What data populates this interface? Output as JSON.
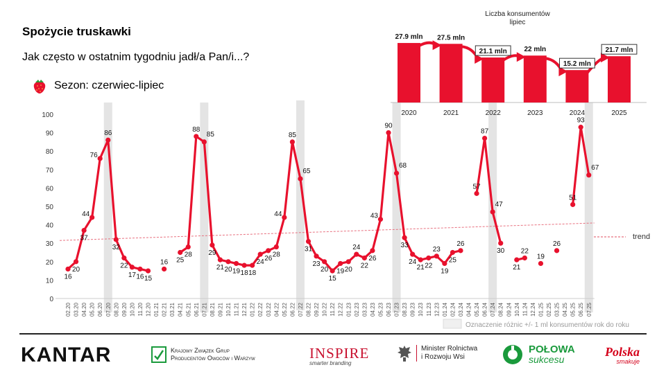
{
  "header": {
    "title": "Spożycie truskawki",
    "subtitle": "Jak często w ostatnim tygodniu jadł/a Pan/i...?",
    "season": "Sezon: czerwiec-lipiec"
  },
  "colors": {
    "series": "#e8112d",
    "band": "#e4e4e4",
    "trend": "#e8707f"
  },
  "chart_data": [
    {
      "type": "line",
      "y_ticks": [
        "0",
        "10",
        "20",
        "30",
        "40",
        "50",
        "60",
        "70",
        "80",
        "90",
        "100"
      ],
      "ylim": [
        0,
        100
      ],
      "x": [
        "02.20",
        "03.20",
        "04.20",
        "05.20",
        "06.20",
        "07.20",
        "08.20",
        "09.20",
        "10.20",
        "11.20",
        "12.20",
        "01.21",
        "02.21",
        "03.21",
        "04.21",
        "05.21",
        "06.21",
        "07.21",
        "08.21",
        "09.21",
        "10.21",
        "11.21",
        "12.21",
        "01.22",
        "02.22",
        "03.22",
        "04.22",
        "05.22",
        "06.22",
        "07.22",
        "08.22",
        "09.22",
        "10.22",
        "11.22",
        "12.22",
        "01.23",
        "02.23",
        "03.23",
        "04.23",
        "05.23",
        "06.23",
        "07.23",
        "08.23",
        "09.23",
        "10.23",
        "11.23",
        "12.23",
        "01.24",
        "02.24",
        "03.24",
        "04.24",
        "05.24",
        "06.24",
        "07.24",
        "08.24",
        "09.24",
        "10.24",
        "11.24",
        "12.24",
        "01.25",
        "02.25",
        "03.25",
        "04.25",
        "05.25",
        "06.25",
        "07.25"
      ],
      "series": [
        {
          "values": [
            16,
            20,
            37,
            44,
            76,
            86,
            32,
            22,
            17,
            16,
            15,
            null,
            16,
            null,
            25,
            28,
            88,
            85,
            29,
            21,
            20,
            19,
            18,
            18,
            24,
            26,
            28,
            44,
            85,
            65,
            31,
            23,
            20,
            15,
            19,
            20,
            24,
            22,
            26,
            43,
            90,
            68,
            33,
            24,
            21,
            22,
            23,
            19,
            25,
            26,
            null,
            57,
            87,
            47,
            30,
            null,
            21,
            22,
            null,
            19,
            null,
            26,
            null,
            51,
            93,
            67
          ]
        }
      ],
      "point_labels": [
        "16",
        "20",
        "37",
        "44",
        "76",
        "86",
        "32",
        "22",
        "17",
        "16",
        "15",
        null,
        "16",
        null,
        "25",
        "28",
        "88",
        "85",
        "29",
        "21",
        "20",
        "19",
        "18",
        "18",
        "24",
        "26",
        "28",
        "44",
        "85",
        "65",
        "31",
        "23",
        "20",
        "15",
        "19",
        "20",
        "24",
        "22",
        "26",
        "43",
        "90",
        "68",
        "33",
        "24",
        "21",
        "22",
        "23",
        "19",
        "25",
        "26",
        null,
        "57",
        "87",
        "47",
        "30",
        null,
        "21",
        "22",
        null,
        "19",
        null,
        "26",
        null,
        "51",
        "93",
        "67"
      ],
      "highlight_months": [
        "07.20",
        "07.21",
        "07.22",
        "07.23",
        "07.24",
        "07.25"
      ],
      "trend": {
        "start": 31.5,
        "end": 41
      },
      "legend": {
        "trend_label": "trend",
        "band_label": "Oznaczenie różnic +/- 1 ml konsumentów rok do roku"
      }
    },
    {
      "type": "bar",
      "title": "Liczba konsumentów lipiec",
      "title_lines": [
        "Liczba konsumentów",
        "lipiec"
      ],
      "categories": [
        "2020",
        "2021",
        "2022",
        "2023",
        "2024",
        "2025"
      ],
      "values": [
        27.9,
        27.5,
        21.1,
        22,
        15.2,
        21.7
      ],
      "value_labels": [
        "27.9 mln",
        "27.5 mln",
        "21.1 mln",
        "22 mln",
        "15.2 mln",
        "21.7 mln"
      ],
      "boxed_labels": [
        false,
        false,
        true,
        false,
        true,
        true
      ]
    }
  ],
  "footer": {
    "kantar": "KANTAR",
    "kzg": [
      "Krajowy Związek Grup",
      "Producentów Owoców i Warzyw"
    ],
    "inspire": "INSPIRE",
    "inspire_sub": "smarter branding",
    "minister": [
      "Minister Rolnictwa",
      "i Rozwoju Wsi"
    ],
    "polowa1": "POŁOWA",
    "polowa2": "sukcesu",
    "polska1": "Polska",
    "polska2": "smakuje"
  }
}
